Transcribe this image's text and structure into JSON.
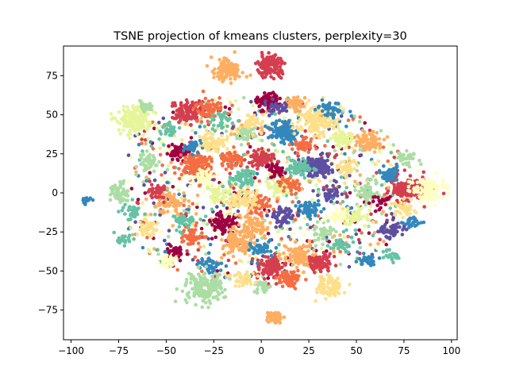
{
  "chart_data": {
    "type": "scatter",
    "title": "TSNE projection of kmeans clusters, perplexity=30",
    "xlabel": "",
    "ylabel": "",
    "xlim": [
      -104,
      103
    ],
    "ylim": [
      -94,
      94
    ],
    "x_ticks": [
      -100,
      -75,
      -50,
      -25,
      0,
      25,
      50,
      75,
      100
    ],
    "y_ticks": [
      -75,
      -50,
      -25,
      0,
      25,
      50,
      75
    ],
    "x_tick_labels": [
      "−100",
      "−75",
      "−50",
      "−25",
      "0",
      "25",
      "50",
      "75",
      "100"
    ],
    "y_tick_labels": [
      "−75",
      "−50",
      "−25",
      "0",
      "25",
      "50",
      "75"
    ],
    "grid": false,
    "legend": "none",
    "colormap": "Spectral",
    "palette": [
      "#9e0142",
      "#d53e4f",
      "#f46d43",
      "#fdae61",
      "#fee08b",
      "#ffffbf",
      "#e6f598",
      "#abdda4",
      "#66c2a5",
      "#3288bd",
      "#5e4fa2"
    ],
    "clusters": [
      {
        "cx": 5,
        "cy": 82,
        "spread": 3.5,
        "color": "#d53e4f",
        "n": 140
      },
      {
        "cx": -17,
        "cy": 79,
        "spread": 4,
        "color": "#fdae61",
        "n": 110
      },
      {
        "cx": -66,
        "cy": 46,
        "spread": 5,
        "color": "#e6f598",
        "n": 170
      },
      {
        "cx": -38,
        "cy": 52,
        "spread": 4,
        "color": "#d53e4f",
        "n": 120
      },
      {
        "cx": -27,
        "cy": 53,
        "spread": 4,
        "color": "#f46d43",
        "n": 70
      },
      {
        "cx": -60,
        "cy": 20,
        "spread": 3,
        "color": "#abdda4",
        "n": 50
      },
      {
        "cx": -44,
        "cy": 26,
        "spread": 3,
        "color": "#9e0142",
        "n": 60
      },
      {
        "cx": -34,
        "cy": 17,
        "spread": 4.5,
        "color": "#f46d43",
        "n": 160
      },
      {
        "cx": -36,
        "cy": 29,
        "spread": 2.5,
        "color": "#3288bd",
        "n": 40
      },
      {
        "cx": 12,
        "cy": 40,
        "spread": 3.5,
        "color": "#3288bd",
        "n": 110
      },
      {
        "cx": 30,
        "cy": 46,
        "spread": 5,
        "color": "#fee08b",
        "n": 160
      },
      {
        "cx": 3,
        "cy": 59,
        "spread": 3,
        "color": "#9e0142",
        "n": 70
      },
      {
        "cx": 18,
        "cy": 57,
        "spread": 2.5,
        "color": "#fdae61",
        "n": 50
      },
      {
        "cx": 36,
        "cy": 54,
        "spread": 3,
        "color": "#3288bd",
        "n": 40
      },
      {
        "cx": 29,
        "cy": 17,
        "spread": 4,
        "color": "#5e4fa2",
        "n": 130
      },
      {
        "cx": 20,
        "cy": 16,
        "spread": 3,
        "color": "#66c2a5",
        "n": 60
      },
      {
        "cx": 0,
        "cy": 22,
        "spread": 3.5,
        "color": "#d53e4f",
        "n": 80
      },
      {
        "cx": 57,
        "cy": 33,
        "spread": 3.5,
        "color": "#fdae61",
        "n": 80
      },
      {
        "cx": 43,
        "cy": 34,
        "spread": 3,
        "color": "#e6f598",
        "n": 50
      },
      {
        "cx": 77,
        "cy": 2,
        "spread": 5,
        "color": "#d53e4f",
        "n": 160
      },
      {
        "cx": 88,
        "cy": 2,
        "spread": 4,
        "color": "#ffffbf",
        "n": 110
      },
      {
        "cx": 68,
        "cy": 12,
        "spread": 3,
        "color": "#3288bd",
        "n": 40
      },
      {
        "cx": 76,
        "cy": 22,
        "spread": 2.5,
        "color": "#abdda4",
        "n": 35
      },
      {
        "cx": 56,
        "cy": 0,
        "spread": 3.5,
        "color": "#abdda4",
        "n": 60
      },
      {
        "cx": 75,
        "cy": -10,
        "spread": 3,
        "color": "#fee08b",
        "n": 45
      },
      {
        "cx": 68,
        "cy": -24,
        "spread": 3,
        "color": "#5e4fa2",
        "n": 55
      },
      {
        "cx": 79,
        "cy": -19,
        "spread": 2.5,
        "color": "#3288bd",
        "n": 25
      },
      {
        "cx": 55,
        "cy": -43,
        "spread": 2.5,
        "color": "#3288bd",
        "n": 30
      },
      {
        "cx": 68,
        "cy": -40,
        "spread": 2.5,
        "color": "#66c2a5",
        "n": 20
      },
      {
        "cx": -92,
        "cy": -5,
        "spread": 1.2,
        "color": "#3288bd",
        "n": 20
      },
      {
        "cx": -75,
        "cy": 0,
        "spread": 3,
        "color": "#abdda4",
        "n": 60
      },
      {
        "cx": -68,
        "cy": -12,
        "spread": 2.5,
        "color": "#66c2a5",
        "n": 35
      },
      {
        "cx": -73,
        "cy": -30,
        "spread": 2,
        "color": "#66c2a5",
        "n": 25
      },
      {
        "cx": -60,
        "cy": -22,
        "spread": 3,
        "color": "#fee08b",
        "n": 40
      },
      {
        "cx": -48,
        "cy": -5,
        "spread": 4,
        "color": "#fdae61",
        "n": 70
      },
      {
        "cx": -36,
        "cy": -28,
        "spread": 3,
        "color": "#f46d43",
        "n": 50
      },
      {
        "cx": -18,
        "cy": -20,
        "spread": 4,
        "color": "#9e0142",
        "n": 80
      },
      {
        "cx": -5,
        "cy": -22,
        "spread": 4,
        "color": "#fdae61",
        "n": 90
      },
      {
        "cx": -2,
        "cy": -8,
        "spread": 3.5,
        "color": "#f46d43",
        "n": 60
      },
      {
        "cx": 10,
        "cy": 5,
        "spread": 3.5,
        "color": "#e6f598",
        "n": 70
      },
      {
        "cx": -10,
        "cy": -4,
        "spread": 4,
        "color": "#fee08b",
        "n": 70
      },
      {
        "cx": -22,
        "cy": 0,
        "spread": 3.5,
        "color": "#e6f598",
        "n": 50
      },
      {
        "cx": -12,
        "cy": -32,
        "spread": 4,
        "color": "#fdae61",
        "n": 90
      },
      {
        "cx": 5,
        "cy": -47,
        "spread": 4,
        "color": "#d53e4f",
        "n": 110
      },
      {
        "cx": 20,
        "cy": -40,
        "spread": 4,
        "color": "#fdae61",
        "n": 110
      },
      {
        "cx": 15,
        "cy": -55,
        "spread": 3,
        "color": "#f46d43",
        "n": 70
      },
      {
        "cx": 30,
        "cy": -45,
        "spread": 3,
        "color": "#d53e4f",
        "n": 80
      },
      {
        "cx": 36,
        "cy": -60,
        "spread": 3.5,
        "color": "#fee08b",
        "n": 80
      },
      {
        "cx": 42,
        "cy": -34,
        "spread": 2.5,
        "color": "#66c2a5",
        "n": 35
      },
      {
        "cx": 38,
        "cy": 0,
        "spread": 3,
        "color": "#5e4fa2",
        "n": 40
      },
      {
        "cx": 25,
        "cy": -10,
        "spread": 3.5,
        "color": "#3288bd",
        "n": 60
      },
      {
        "cx": 12,
        "cy": -15,
        "spread": 3.5,
        "color": "#5e4fa2",
        "n": 60
      },
      {
        "cx": -27,
        "cy": -46,
        "spread": 3,
        "color": "#3288bd",
        "n": 40
      },
      {
        "cx": -30,
        "cy": -61,
        "spread": 5,
        "color": "#abdda4",
        "n": 180
      },
      {
        "cx": -45,
        "cy": -38,
        "spread": 2.5,
        "color": "#9e0142",
        "n": 30
      },
      {
        "cx": -50,
        "cy": -44,
        "spread": 2.5,
        "color": "#ffffbf",
        "n": 30
      },
      {
        "cx": 7,
        "cy": -80,
        "spread": 2.2,
        "color": "#fdae61",
        "n": 50
      },
      {
        "cx": 1,
        "cy": -60,
        "spread": 2.5,
        "color": "#abdda4",
        "n": 30
      },
      {
        "cx": -10,
        "cy": -55,
        "spread": 3,
        "color": "#fee08b",
        "n": 40
      },
      {
        "cx": -25,
        "cy": 32,
        "spread": 3.5,
        "color": "#fee08b",
        "n": 70
      },
      {
        "cx": -8,
        "cy": 38,
        "spread": 3,
        "color": "#abdda4",
        "n": 50
      },
      {
        "cx": -15,
        "cy": 22,
        "spread": 3,
        "color": "#f46d43",
        "n": 50
      },
      {
        "cx": -9,
        "cy": 10,
        "spread": 3.5,
        "color": "#66c2a5",
        "n": 60
      },
      {
        "cx": 8,
        "cy": 14,
        "spread": 3,
        "color": "#9e0142",
        "n": 35
      },
      {
        "cx": 22,
        "cy": 30,
        "spread": 3,
        "color": "#f46d43",
        "n": 40
      },
      {
        "cx": 45,
        "cy": 16,
        "spread": 3,
        "color": "#fee08b",
        "n": 40
      },
      {
        "cx": 50,
        "cy": -15,
        "spread": 3,
        "color": "#e6f598",
        "n": 35
      },
      {
        "cx": -60,
        "cy": 55,
        "spread": 2,
        "color": "#abdda4",
        "n": 25
      },
      {
        "cx": -49,
        "cy": 40,
        "spread": 2.5,
        "color": "#66c2a5",
        "n": 30
      },
      {
        "cx": -5,
        "cy": 45,
        "spread": 3,
        "color": "#fee08b",
        "n": 40
      },
      {
        "cx": 8,
        "cy": 55,
        "spread": 3,
        "color": "#5e4fa2",
        "n": 30
      },
      {
        "cx": -22,
        "cy": 45,
        "spread": 3,
        "color": "#66c2a5",
        "n": 30
      },
      {
        "cx": -40,
        "cy": -18,
        "spread": 3,
        "color": "#66c2a5",
        "n": 40
      },
      {
        "cx": -55,
        "cy": 0,
        "spread": 3,
        "color": "#d53e4f",
        "n": 30
      },
      {
        "cx": 0,
        "cy": -35,
        "spread": 3,
        "color": "#3288bd",
        "n": 40
      },
      {
        "cx": 62,
        "cy": -5,
        "spread": 2.5,
        "color": "#9e0142",
        "n": 20
      },
      {
        "cx": 33,
        "cy": -25,
        "spread": 3,
        "color": "#abdda4",
        "n": 40
      },
      {
        "cx": 40,
        "cy": -15,
        "spread": 3,
        "color": "#ffffbf",
        "n": 40
      },
      {
        "cx": 15,
        "cy": 5,
        "spread": 3,
        "color": "#f46d43",
        "n": 40
      },
      {
        "cx": -30,
        "cy": 10,
        "spread": 3,
        "color": "#ffffbf",
        "n": 40
      }
    ],
    "noise": {
      "n": 1100,
      "x_range": [
        -70,
        72
      ],
      "y_range": [
        -55,
        62
      ]
    }
  }
}
